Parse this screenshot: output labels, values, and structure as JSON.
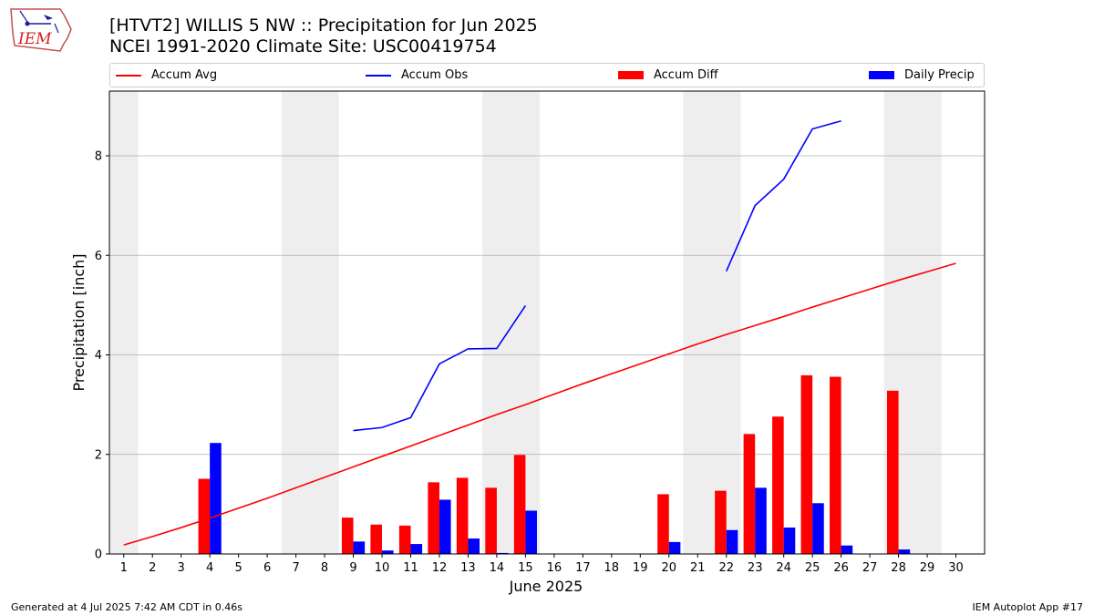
{
  "header": {
    "title_line1": "[HTVT2] WILLIS 5 NW :: Precipitation for Jun 2025",
    "title_line2": "NCEI 1991-2020 Climate Site: USC00419754"
  },
  "logo": {
    "text": "IEM",
    "icon": "iem-iowa-logo"
  },
  "footer": {
    "left": "Generated at 4 Jul 2025 7:42 AM CDT in 0.46s",
    "right": "IEM Autoplot App #17"
  },
  "colors": {
    "avg": "#ff0000",
    "obs": "#0000ff",
    "diff": "#ff0000",
    "daily": "#0000ff",
    "weekend_band": "#eeeeee",
    "grid": "#b0b0b0"
  },
  "chart_data": {
    "type": "bar",
    "xlabel": "June 2025",
    "ylabel": "Precipitation [inch]",
    "xlim": [
      0.5,
      31.0
    ],
    "ylim": [
      0,
      9.3
    ],
    "yticks": [
      0,
      2,
      4,
      6,
      8
    ],
    "grid": "horizontal",
    "legend": "top, horizontal",
    "days": [
      1,
      2,
      3,
      4,
      5,
      6,
      7,
      8,
      9,
      10,
      11,
      12,
      13,
      14,
      15,
      16,
      17,
      18,
      19,
      20,
      21,
      22,
      23,
      24,
      25,
      26,
      27,
      28,
      29,
      30
    ],
    "weekend_bands": [
      [
        0.5,
        1.5
      ],
      [
        6.5,
        8.5
      ],
      [
        13.5,
        15.5
      ],
      [
        20.5,
        22.5
      ],
      [
        27.5,
        29.5
      ]
    ],
    "series": [
      {
        "name": "Accum Avg",
        "kind": "line",
        "x": [
          1,
          2,
          3,
          4,
          5,
          6,
          7,
          8,
          9,
          10,
          11,
          12,
          13,
          14,
          15,
          16,
          17,
          18,
          19,
          20,
          21,
          22,
          23,
          24,
          25,
          26,
          27,
          28,
          29,
          30
        ],
        "values": [
          0.18,
          0.35,
          0.53,
          0.72,
          0.92,
          1.12,
          1.33,
          1.54,
          1.75,
          1.96,
          2.17,
          2.38,
          2.59,
          2.8,
          3.0,
          3.21,
          3.42,
          3.62,
          3.82,
          4.02,
          4.22,
          4.41,
          4.59,
          4.77,
          4.96,
          5.14,
          5.32,
          5.5,
          5.67,
          5.84
        ]
      },
      {
        "name": "Accum Obs",
        "kind": "line",
        "segments": [
          {
            "x": [
              9,
              10,
              11,
              12,
              13,
              14,
              15
            ],
            "values": [
              2.48,
              2.54,
              2.74,
              3.82,
              4.12,
              4.13,
              4.99
            ]
          },
          {
            "x": [
              22,
              23,
              24,
              25,
              26
            ],
            "values": [
              5.68,
              7.0,
              7.53,
              8.54,
              8.7
            ]
          }
        ]
      },
      {
        "name": "Accum Diff",
        "kind": "bar",
        "x": [
          4,
          9,
          10,
          11,
          12,
          13,
          14,
          15,
          20,
          22,
          23,
          24,
          25,
          26,
          28
        ],
        "values": [
          1.51,
          0.73,
          0.59,
          0.57,
          1.44,
          1.53,
          1.33,
          1.99,
          1.2,
          1.27,
          2.41,
          2.76,
          3.59,
          3.56,
          3.28
        ]
      },
      {
        "name": "Daily Precip",
        "kind": "bar",
        "x": [
          4,
          9,
          10,
          11,
          12,
          13,
          14,
          15,
          20,
          22,
          23,
          24,
          25,
          26,
          28
        ],
        "values": [
          2.23,
          0.25,
          0.07,
          0.2,
          1.09,
          0.31,
          0.02,
          0.87,
          0.24,
          0.48,
          1.33,
          0.53,
          1.02,
          0.17,
          0.09
        ]
      }
    ]
  }
}
